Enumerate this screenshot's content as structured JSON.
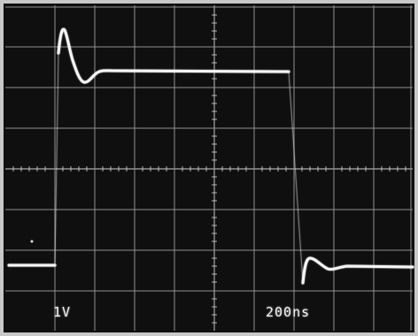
{
  "scope": {
    "volts_per_div": "1V",
    "time_per_div": "200ns"
  },
  "colors": {
    "screen_background": "#0f0f0f",
    "graticule": "#bdbdbd",
    "trace": "#f5f5f5",
    "border": "#c8c8c8"
  }
}
